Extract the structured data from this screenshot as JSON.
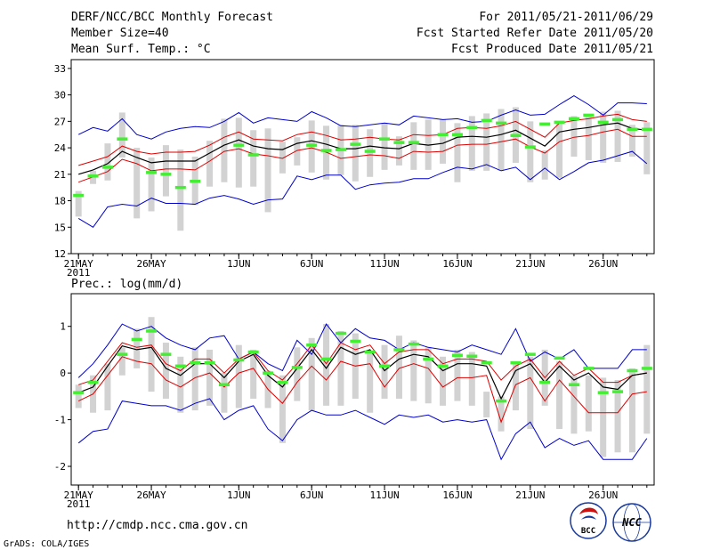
{
  "header": {
    "title": "DERF/NCC/BCC Monthly Forecast",
    "member_size": "Member Size=40",
    "variable": "Mean Surf. Temp.: °C",
    "period": "For 2011/05/21-2011/06/29",
    "started": "Fcst Started Refer Date 2011/05/20",
    "produced": "Fcst Produced Date 2011/05/21"
  },
  "footer": {
    "url": "http://cmdp.ncc.cma.gov.cn",
    "credit": "GrADS: COLA/IGES",
    "logo_bcc": "BCC",
    "logo_ncc": "NCC"
  },
  "colors": {
    "envelope": "#0000cc",
    "spread": "#dd0000",
    "mean": "#000000",
    "box": "#d2d2d2",
    "observed": "#44ee33",
    "frame": "#000000"
  },
  "chart_data": [
    {
      "type": "line",
      "title": "Mean Surf. Temp.: °C",
      "x_tick_labels": [
        "21MAY",
        "26MAY",
        "1JUN",
        "6JUN",
        "11JUN",
        "16JUN",
        "21JUN",
        "26JUN"
      ],
      "x_tick_days": [
        1,
        6,
        12,
        17,
        22,
        27,
        32,
        37
      ],
      "year_label": "2011",
      "y_ticks": [
        12,
        15,
        18,
        21,
        24,
        27,
        30,
        33
      ],
      "ylim": [
        12,
        34
      ],
      "xlim": [
        0.5,
        40.5
      ],
      "days": [
        1,
        2,
        3,
        4,
        5,
        6,
        7,
        8,
        9,
        10,
        11,
        12,
        13,
        14,
        15,
        16,
        17,
        18,
        19,
        20,
        21,
        22,
        23,
        24,
        25,
        26,
        27,
        28,
        29,
        30,
        31,
        32,
        33,
        34,
        35,
        36,
        37,
        38,
        39,
        40
      ],
      "series": [
        {
          "name": "ensemble max",
          "color_key": "envelope",
          "values": [
            25.5,
            26.3,
            25.9,
            27.3,
            25.5,
            25.0,
            25.8,
            26.2,
            26.4,
            26.3,
            27.0,
            28.0,
            26.8,
            27.4,
            27.2,
            27.0,
            28.1,
            27.4,
            26.5,
            26.4,
            26.6,
            26.8,
            26.6,
            27.6,
            27.4,
            27.2,
            27.3,
            26.9,
            27.0,
            27.7,
            28.3,
            27.7,
            27.8,
            28.9,
            29.9,
            28.9,
            27.7,
            29.1,
            29.1,
            29.0
          ]
        },
        {
          "name": "upper spread",
          "color_key": "spread",
          "values": [
            22.0,
            22.5,
            23.0,
            24.2,
            23.6,
            23.3,
            23.5,
            23.5,
            23.6,
            24.3,
            25.2,
            25.8,
            25.0,
            24.9,
            24.8,
            25.5,
            25.8,
            25.4,
            24.9,
            25.0,
            25.2,
            25.0,
            24.9,
            25.5,
            25.4,
            25.5,
            26.2,
            26.3,
            26.2,
            26.5,
            27.0,
            26.1,
            25.2,
            26.8,
            27.1,
            27.3,
            27.6,
            27.8,
            27.2,
            27.0
          ]
        },
        {
          "name": "ensemble mean",
          "color_key": "mean",
          "values": [
            21.0,
            21.5,
            22.2,
            23.6,
            22.9,
            22.3,
            22.5,
            22.5,
            22.5,
            23.4,
            24.3,
            24.9,
            24.2,
            23.9,
            23.8,
            24.5,
            24.8,
            24.4,
            23.9,
            23.9,
            24.2,
            24.0,
            23.9,
            24.5,
            24.3,
            24.5,
            25.2,
            25.3,
            25.2,
            25.5,
            26.0,
            25.1,
            24.2,
            25.8,
            26.1,
            26.3,
            26.6,
            26.8,
            26.2,
            26.0
          ]
        },
        {
          "name": "lower spread",
          "color_key": "spread",
          "values": [
            20.1,
            20.7,
            21.3,
            22.7,
            22.2,
            21.4,
            21.6,
            21.6,
            21.5,
            22.5,
            23.6,
            23.9,
            23.3,
            23.1,
            22.8,
            23.7,
            24.0,
            23.5,
            22.8,
            23.0,
            23.2,
            23.1,
            22.8,
            23.6,
            23.5,
            23.6,
            24.3,
            24.4,
            24.4,
            24.7,
            25.0,
            24.1,
            23.4,
            24.7,
            25.2,
            25.4,
            25.8,
            26.1,
            25.3,
            25.3
          ]
        },
        {
          "name": "ensemble min",
          "color_key": "envelope",
          "values": [
            16.0,
            15.0,
            17.3,
            17.6,
            17.4,
            18.3,
            17.7,
            17.7,
            17.6,
            18.3,
            18.6,
            18.2,
            17.6,
            18.1,
            18.2,
            20.8,
            20.4,
            20.9,
            20.9,
            19.3,
            19.8,
            20.0,
            20.1,
            20.5,
            20.5,
            21.2,
            21.8,
            21.6,
            22.1,
            21.4,
            21.8,
            20.4,
            21.7,
            20.4,
            21.3,
            22.3,
            22.6,
            23.1,
            23.6,
            22.2
          ]
        }
      ],
      "boxes": [
        {
          "day": 1,
          "low": 16.2,
          "high": 19.1
        },
        {
          "day": 2,
          "low": 19.9,
          "high": 21.4
        },
        {
          "day": 3,
          "low": 20.3,
          "high": 24.5
        },
        {
          "day": 4,
          "low": 22.9,
          "high": 28.0
        },
        {
          "day": 5,
          "low": 16.0,
          "high": 24.0
        },
        {
          "day": 6,
          "low": 16.8,
          "high": 22.9
        },
        {
          "day": 7,
          "low": 18.5,
          "high": 24.3
        },
        {
          "day": 8,
          "low": 14.6,
          "high": 23.8
        },
        {
          "day": 9,
          "low": 17.5,
          "high": 23.0
        },
        {
          "day": 10,
          "low": 19.6,
          "high": 24.8
        },
        {
          "day": 11,
          "low": 20.1,
          "high": 27.3
        },
        {
          "day": 12,
          "low": 19.5,
          "high": 27.4
        },
        {
          "day": 13,
          "low": 19.6,
          "high": 26.0
        },
        {
          "day": 14,
          "low": 16.7,
          "high": 26.2
        },
        {
          "day": 15,
          "low": 21.1,
          "high": 24.7
        },
        {
          "day": 16,
          "low": 22.0,
          "high": 25.2
        },
        {
          "day": 17,
          "low": 21.2,
          "high": 27.1
        },
        {
          "day": 18,
          "low": 20.4,
          "high": 26.5
        },
        {
          "day": 19,
          "low": 20.9,
          "high": 26.6
        },
        {
          "day": 20,
          "low": 20.2,
          "high": 26.6
        },
        {
          "day": 21,
          "low": 20.7,
          "high": 26.1
        },
        {
          "day": 22,
          "low": 21.5,
          "high": 26.8
        },
        {
          "day": 23,
          "low": 22.0,
          "high": 25.3
        },
        {
          "day": 24,
          "low": 21.5,
          "high": 26.9
        },
        {
          "day": 25,
          "low": 21.5,
          "high": 27.2
        },
        {
          "day": 26,
          "low": 22.2,
          "high": 27.2
        },
        {
          "day": 27,
          "low": 20.1,
          "high": 26.8
        },
        {
          "day": 28,
          "low": 21.4,
          "high": 27.6
        },
        {
          "day": 29,
          "low": 21.4,
          "high": 27.9
        },
        {
          "day": 30,
          "low": 21.4,
          "high": 28.4
        },
        {
          "day": 31,
          "low": 22.3,
          "high": 28.6
        },
        {
          "day": 32,
          "low": 20.1,
          "high": 27.0
        },
        {
          "day": 33,
          "low": 20.4,
          "high": 23.7
        },
        {
          "day": 34,
          "low": 20.6,
          "high": 26.8
        },
        {
          "day": 35,
          "low": 23.0,
          "high": 27.6
        },
        {
          "day": 36,
          "low": 22.6,
          "high": 27.6
        },
        {
          "day": 37,
          "low": 22.3,
          "high": 28.1
        },
        {
          "day": 38,
          "low": 22.4,
          "high": 28.2
        },
        {
          "day": 39,
          "low": 23.0,
          "high": 26.6
        },
        {
          "day": 40,
          "low": 21.0,
          "high": 26.9
        }
      ],
      "observed": [
        18.6,
        20.8,
        21.8,
        25.0,
        null,
        21.2,
        21.0,
        19.5,
        20.2,
        null,
        null,
        24.3,
        23.2,
        null,
        null,
        null,
        24.3,
        23.7,
        23.8,
        24.4,
        23.6,
        25.0,
        24.6,
        24.6,
        null,
        25.5,
        25.5,
        26.3,
        27.1,
        26.8,
        25.4,
        24.1,
        26.7,
        26.9,
        27.3,
        27.7,
        26.9,
        27.2,
        26.1,
        26.1
      ]
    },
    {
      "type": "line",
      "title": "Prec.: log(mm/d)",
      "x_tick_labels": [
        "21MAY",
        "26MAY",
        "1JUN",
        "6JUN",
        "11JUN",
        "16JUN",
        "21JUN",
        "26JUN"
      ],
      "x_tick_days": [
        1,
        6,
        12,
        17,
        22,
        27,
        32,
        37
      ],
      "year_label": "2011",
      "y_ticks": [
        -2,
        -1,
        0,
        1
      ],
      "ylim": [
        -2.4,
        1.7
      ],
      "xlim": [
        0.5,
        40.5
      ],
      "days": [
        1,
        2,
        3,
        4,
        5,
        6,
        7,
        8,
        9,
        10,
        11,
        12,
        13,
        14,
        15,
        16,
        17,
        18,
        19,
        20,
        21,
        22,
        23,
        24,
        25,
        26,
        27,
        28,
        29,
        30,
        31,
        32,
        33,
        34,
        35,
        36,
        37,
        38,
        39,
        40
      ],
      "series": [
        {
          "name": "ensemble max",
          "color_key": "envelope",
          "values": [
            -0.1,
            0.2,
            0.6,
            1.05,
            0.9,
            1.0,
            0.75,
            0.6,
            0.5,
            0.75,
            0.8,
            0.3,
            0.45,
            0.2,
            0.05,
            0.7,
            0.4,
            1.05,
            0.65,
            0.95,
            0.75,
            0.7,
            0.5,
            0.65,
            0.55,
            0.5,
            0.45,
            0.6,
            0.5,
            0.4,
            0.95,
            0.25,
            0.45,
            0.3,
            0.5,
            0.1,
            0.1,
            0.1,
            0.5,
            0.5
          ]
        },
        {
          "name": "upper spread",
          "color_key": "spread",
          "values": [
            -0.25,
            -0.15,
            0.25,
            0.65,
            0.55,
            0.6,
            0.2,
            0.05,
            0.3,
            0.3,
            0.0,
            0.3,
            0.45,
            0.05,
            -0.15,
            0.2,
            0.6,
            0.2,
            0.65,
            0.5,
            0.6,
            0.2,
            0.45,
            0.5,
            0.5,
            0.2,
            0.3,
            0.3,
            0.25,
            -0.15,
            0.15,
            0.3,
            -0.1,
            0.25,
            -0.05,
            0.1,
            -0.2,
            -0.2,
            -0.05,
            0.0
          ]
        },
        {
          "name": "ensemble mean",
          "color_key": "mean",
          "values": [
            -0.42,
            -0.3,
            0.15,
            0.58,
            0.5,
            0.55,
            0.1,
            -0.05,
            0.2,
            0.2,
            -0.1,
            0.25,
            0.4,
            -0.05,
            -0.3,
            0.1,
            0.5,
            0.1,
            0.55,
            0.4,
            0.5,
            0.05,
            0.3,
            0.4,
            0.35,
            0.05,
            0.2,
            0.2,
            0.15,
            -0.55,
            0.05,
            0.2,
            -0.2,
            0.15,
            -0.15,
            0.0,
            -0.3,
            -0.35,
            -0.05,
            0.0
          ]
        },
        {
          "name": "lower spread",
          "color_key": "spread",
          "values": [
            -0.6,
            -0.45,
            -0.05,
            0.35,
            0.25,
            0.2,
            -0.15,
            -0.3,
            -0.1,
            0.0,
            -0.3,
            0.0,
            0.1,
            -0.35,
            -0.65,
            -0.2,
            0.15,
            -0.15,
            0.25,
            0.15,
            0.2,
            -0.3,
            0.1,
            0.2,
            0.1,
            -0.3,
            -0.1,
            -0.1,
            -0.05,
            -1.05,
            -0.25,
            -0.1,
            -0.6,
            -0.15,
            -0.5,
            -0.85,
            -0.85,
            -0.85,
            -0.45,
            -0.4
          ]
        },
        {
          "name": "ensemble min",
          "color_key": "envelope",
          "values": [
            -1.5,
            -1.25,
            -1.2,
            -0.6,
            -0.65,
            -0.7,
            -0.7,
            -0.8,
            -0.65,
            -0.55,
            -1.0,
            -0.8,
            -0.7,
            -1.2,
            -1.45,
            -1.0,
            -0.8,
            -0.9,
            -0.9,
            -0.8,
            -0.95,
            -1.1,
            -0.9,
            -0.95,
            -0.9,
            -1.05,
            -1.0,
            -1.05,
            -1.0,
            -1.85,
            -1.3,
            -1.05,
            -1.6,
            -1.4,
            -1.55,
            -1.45,
            -1.85,
            -1.85,
            -1.85,
            -1.4
          ]
        }
      ],
      "boxes": [
        {
          "day": 1,
          "low": -0.75,
          "high": -0.25
        },
        {
          "day": 2,
          "low": -0.85,
          "high": -0.05
        },
        {
          "day": 3,
          "low": -0.8,
          "high": 0.2
        },
        {
          "day": 4,
          "low": -0.05,
          "high": 0.55
        },
        {
          "day": 5,
          "low": 0.1,
          "high": 0.95
        },
        {
          "day": 6,
          "low": -0.4,
          "high": 1.2
        },
        {
          "day": 7,
          "low": -0.55,
          "high": 0.65
        },
        {
          "day": 8,
          "low": -0.85,
          "high": 0.35
        },
        {
          "day": 9,
          "low": -0.8,
          "high": 0.55
        },
        {
          "day": 10,
          "low": -0.7,
          "high": 0.5
        },
        {
          "day": 11,
          "low": -0.85,
          "high": 0.0
        },
        {
          "day": 12,
          "low": -0.75,
          "high": 0.6
        },
        {
          "day": 13,
          "low": -0.55,
          "high": 0.5
        },
        {
          "day": 14,
          "low": -0.75,
          "high": 0.05
        },
        {
          "day": 15,
          "low": -1.5,
          "high": -0.05
        },
        {
          "day": 16,
          "low": -0.6,
          "high": 0.55
        },
        {
          "day": 17,
          "low": -0.8,
          "high": 0.75
        },
        {
          "day": 18,
          "low": -0.7,
          "high": 1.05
        },
        {
          "day": 19,
          "low": -0.7,
          "high": 0.9
        },
        {
          "day": 20,
          "low": -0.55,
          "high": 0.85
        },
        {
          "day": 21,
          "low": -0.85,
          "high": 0.45
        },
        {
          "day": 22,
          "low": -0.55,
          "high": 0.6
        },
        {
          "day": 23,
          "low": -0.55,
          "high": 0.8
        },
        {
          "day": 24,
          "low": -0.6,
          "high": 0.7
        },
        {
          "day": 25,
          "low": -0.65,
          "high": 0.55
        },
        {
          "day": 26,
          "low": -0.7,
          "high": 0.35
        },
        {
          "day": 27,
          "low": -0.6,
          "high": 0.5
        },
        {
          "day": 28,
          "low": -0.7,
          "high": 0.45
        },
        {
          "day": 29,
          "low": -0.95,
          "high": -0.4
        },
        {
          "day": 30,
          "low": -1.25,
          "high": -0.5
        },
        {
          "day": 31,
          "low": -0.8,
          "high": 0.2
        },
        {
          "day": 32,
          "low": -1.2,
          "high": 0.35
        },
        {
          "day": 33,
          "low": -0.7,
          "high": 0.5
        },
        {
          "day": 34,
          "low": -1.2,
          "high": 0.25
        },
        {
          "day": 35,
          "low": -1.3,
          "high": -0.05
        },
        {
          "day": 36,
          "low": -1.25,
          "high": -0.05
        },
        {
          "day": 37,
          "low": -1.8,
          "high": -0.1
        },
        {
          "day": 38,
          "low": -1.7,
          "high": -0.15
        },
        {
          "day": 39,
          "low": -1.7,
          "high": 0.1
        },
        {
          "day": 40,
          "low": -1.3,
          "high": 0.6
        }
      ],
      "observed": [
        -0.42,
        -0.2,
        null,
        0.4,
        0.72,
        0.9,
        0.4,
        0.15,
        0.22,
        0.22,
        -0.25,
        0.28,
        0.45,
        0.0,
        -0.2,
        0.12,
        0.6,
        0.3,
        0.85,
        0.68,
        0.45,
        0.15,
        0.5,
        0.62,
        0.3,
        0.15,
        0.38,
        0.36,
        0.22,
        -0.6,
        0.22,
        0.4,
        -0.2,
        0.32,
        -0.25,
        0.1,
        -0.42,
        -0.4,
        0.05,
        0.1
      ]
    }
  ]
}
